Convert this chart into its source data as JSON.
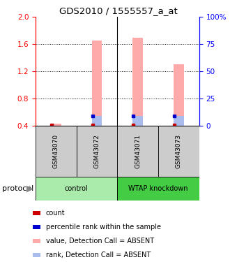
{
  "title": "GDS2010 / 1555557_a_at",
  "samples": [
    "GSM43070",
    "GSM43072",
    "GSM43071",
    "GSM43073"
  ],
  "pink_bar_tops": [
    0.43,
    1.65,
    1.7,
    1.3
  ],
  "blue_rank_pct": [
    0,
    9,
    9,
    9
  ],
  "red_dot_present": [
    true,
    true,
    true,
    true
  ],
  "blue_dot_present": [
    false,
    true,
    true,
    true
  ],
  "ylim": [
    0.4,
    2.0
  ],
  "y_ticks_left": [
    0.4,
    0.8,
    1.2,
    1.6,
    2.0
  ],
  "y_ticks_right": [
    0,
    25,
    50,
    75,
    100
  ],
  "right_ylim": [
    0,
    100
  ],
  "light_green": "#aaeaaa",
  "dark_green": "#44cc44",
  "pink_color": "#ffaaaa",
  "blue_light_color": "#aabbee",
  "red_color": "#cc0000",
  "blue_color": "#0000cc",
  "gray_label": "#cccccc",
  "bar_bottom": 0.4,
  "bar_width": 0.25,
  "grid_lines": [
    0.8,
    1.2,
    1.6
  ],
  "legend_items": [
    [
      "#cc0000",
      "count"
    ],
    [
      "#0000cc",
      "percentile rank within the sample"
    ],
    [
      "#ffaaaa",
      "value, Detection Call = ABSENT"
    ],
    [
      "#aabbee",
      "rank, Detection Call = ABSENT"
    ]
  ]
}
